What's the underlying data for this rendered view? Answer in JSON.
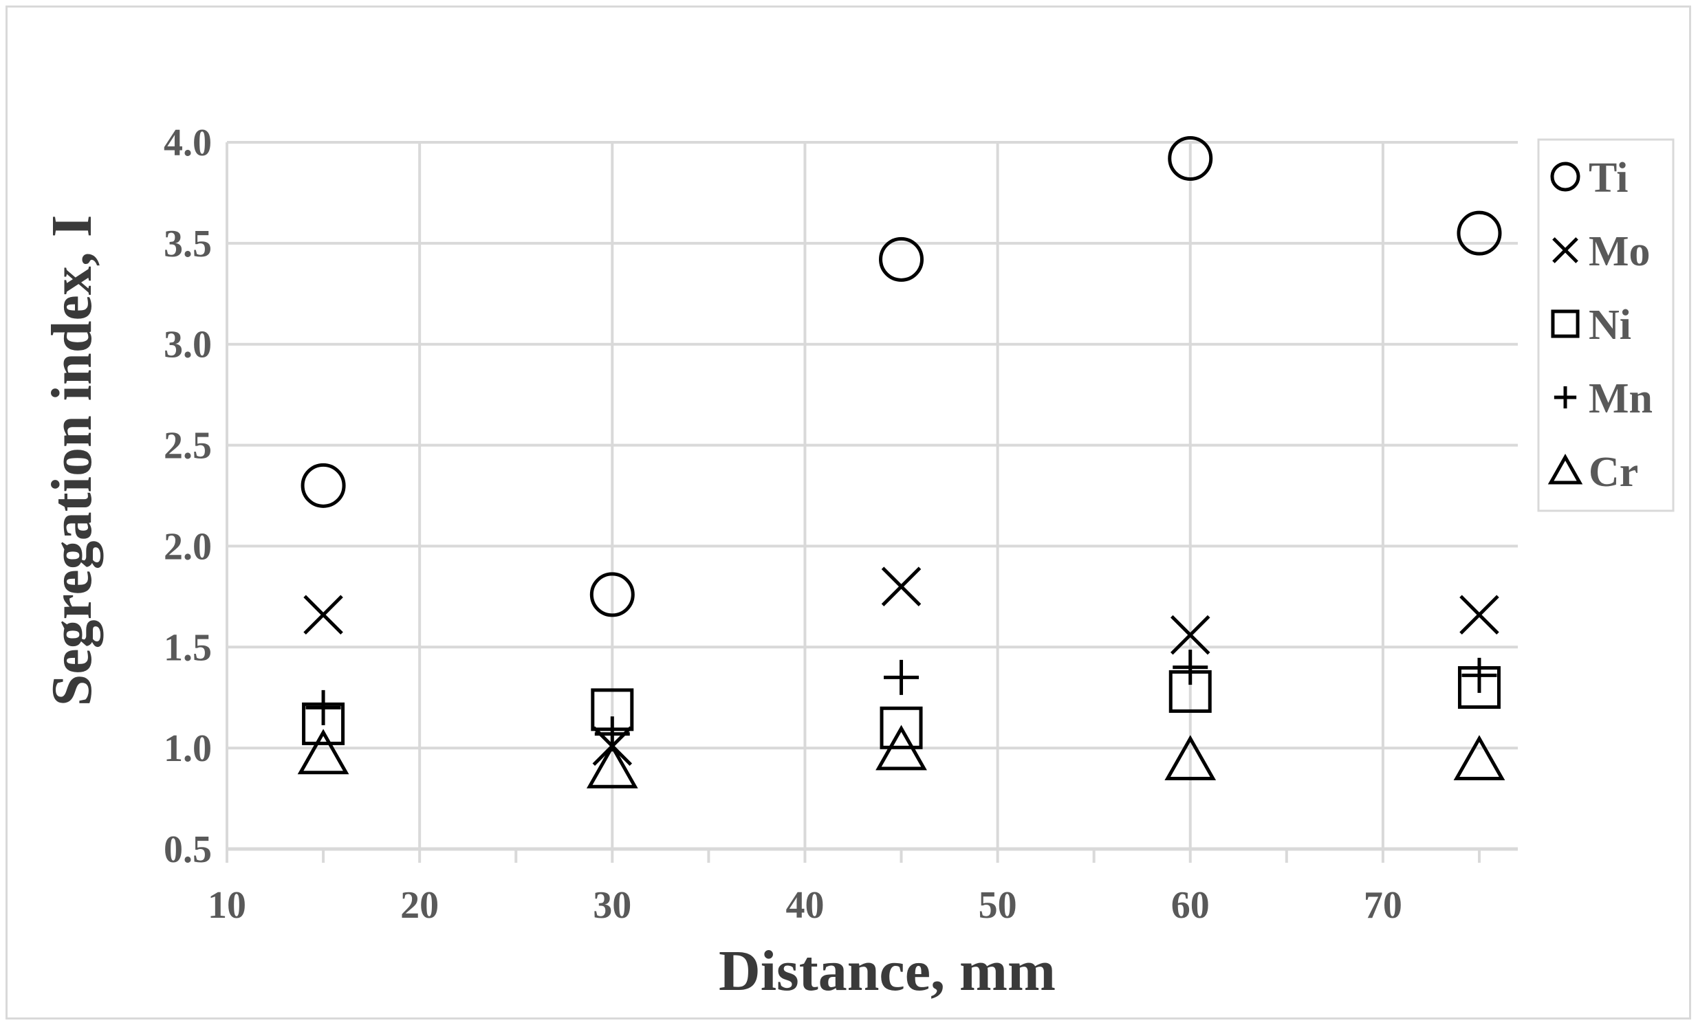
{
  "chart_data": {
    "type": "scatter",
    "title": "",
    "xlabel": "Distance, mm",
    "ylabel": "Segregation index, I",
    "xlim": [
      10,
      77
    ],
    "ylim": [
      0.5,
      4.0
    ],
    "x_ticks": [
      "10",
      "20",
      "30",
      "40",
      "50",
      "60",
      "70"
    ],
    "y_ticks": [
      "0.5",
      "1.0",
      "1.5",
      "2.0",
      "2.5",
      "3.0",
      "3.5",
      "4.0"
    ],
    "grid": true,
    "legend_position": "right",
    "marker_color": "#000000",
    "grid_color": "#d9d9d9",
    "series": [
      {
        "name": "Ti",
        "marker": "circle",
        "x": [
          15,
          30,
          45,
          60,
          75
        ],
        "y": [
          2.3,
          1.76,
          3.42,
          3.92,
          3.55
        ]
      },
      {
        "name": "Mo",
        "marker": "x",
        "x": [
          15,
          30,
          45,
          60,
          75
        ],
        "y": [
          1.66,
          1.01,
          1.8,
          1.56,
          1.66
        ]
      },
      {
        "name": "Ni",
        "marker": "square",
        "x": [
          15,
          30,
          45,
          60,
          75
        ],
        "y": [
          1.12,
          1.19,
          1.1,
          1.28,
          1.3
        ]
      },
      {
        "name": "Mn",
        "marker": "plus",
        "x": [
          15,
          30,
          45,
          60,
          75
        ],
        "y": [
          1.2,
          1.07,
          1.35,
          1.4,
          1.36
        ]
      },
      {
        "name": "Cr",
        "marker": "triangle",
        "x": [
          15,
          30,
          45,
          60,
          75
        ],
        "y": [
          0.97,
          0.9,
          0.99,
          0.94,
          0.94
        ]
      }
    ]
  }
}
